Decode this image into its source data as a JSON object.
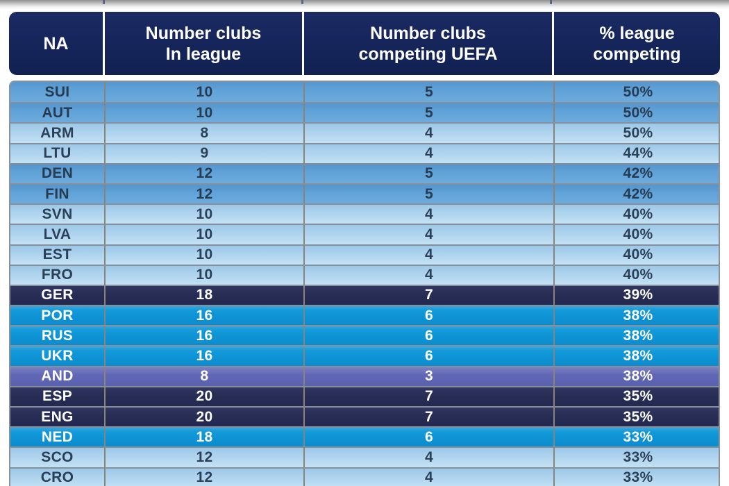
{
  "colors": {
    "header_bg": "#15255a",
    "grid_line": "#87909a",
    "row_medium_blue": "#61a2d7",
    "row_light_blue": "#aed3ee",
    "row_navy": "#272d55",
    "row_azure": "#0e92d4",
    "row_purple": "#6167b4",
    "dark_text": "#263a50",
    "white_text": "#ffffff"
  },
  "table": {
    "headers": {
      "na": "NA",
      "clubs": "Number clubs\nIn league",
      "uefa": "Number clubs\ncompeting UEFA",
      "pct": "% league\ncompeting"
    },
    "rows": [
      {
        "code": "SUI",
        "clubs": "10",
        "uefa": "5",
        "pct": "50%",
        "style": "medium"
      },
      {
        "code": "AUT",
        "clubs": "10",
        "uefa": "5",
        "pct": "50%",
        "style": "medium"
      },
      {
        "code": "ARM",
        "clubs": "8",
        "uefa": "4",
        "pct": "50%",
        "style": "light"
      },
      {
        "code": "LTU",
        "clubs": "9",
        "uefa": "4",
        "pct": "44%",
        "style": "light"
      },
      {
        "code": "DEN",
        "clubs": "12",
        "uefa": "5",
        "pct": "42%",
        "style": "medium"
      },
      {
        "code": "FIN",
        "clubs": "12",
        "uefa": "5",
        "pct": "42%",
        "style": "medium"
      },
      {
        "code": "SVN",
        "clubs": "10",
        "uefa": "4",
        "pct": "40%",
        "style": "light"
      },
      {
        "code": "LVA",
        "clubs": "10",
        "uefa": "4",
        "pct": "40%",
        "style": "light"
      },
      {
        "code": "EST",
        "clubs": "10",
        "uefa": "4",
        "pct": "40%",
        "style": "light"
      },
      {
        "code": "FRO",
        "clubs": "10",
        "uefa": "4",
        "pct": "40%",
        "style": "light"
      },
      {
        "code": "GER",
        "clubs": "18",
        "uefa": "7",
        "pct": "39%",
        "style": "navy"
      },
      {
        "code": "POR",
        "clubs": "16",
        "uefa": "6",
        "pct": "38%",
        "style": "azure"
      },
      {
        "code": "RUS",
        "clubs": "16",
        "uefa": "6",
        "pct": "38%",
        "style": "azure"
      },
      {
        "code": "UKR",
        "clubs": "16",
        "uefa": "6",
        "pct": "38%",
        "style": "azure"
      },
      {
        "code": "AND",
        "clubs": "8",
        "uefa": "3",
        "pct": "38%",
        "style": "purple"
      },
      {
        "code": "ESP",
        "clubs": "20",
        "uefa": "7",
        "pct": "35%",
        "style": "navy"
      },
      {
        "code": "ENG",
        "clubs": "20",
        "uefa": "7",
        "pct": "35%",
        "style": "navy"
      },
      {
        "code": "NED",
        "clubs": "18",
        "uefa": "6",
        "pct": "33%",
        "style": "azure"
      },
      {
        "code": "SCO",
        "clubs": "12",
        "uefa": "4",
        "pct": "33%",
        "style": "light"
      },
      {
        "code": "CRO",
        "clubs": "12",
        "uefa": "4",
        "pct": "33%",
        "style": "light"
      }
    ]
  },
  "chart_data": {
    "type": "table",
    "title": "",
    "columns": [
      "NA",
      "Number clubs In league",
      "Number clubs competing UEFA",
      "% league competing"
    ],
    "rows": [
      [
        "SUI",
        10,
        5,
        "50%"
      ],
      [
        "AUT",
        10,
        5,
        "50%"
      ],
      [
        "ARM",
        8,
        4,
        "50%"
      ],
      [
        "LTU",
        9,
        4,
        "44%"
      ],
      [
        "DEN",
        12,
        5,
        "42%"
      ],
      [
        "FIN",
        12,
        5,
        "42%"
      ],
      [
        "SVN",
        10,
        4,
        "40%"
      ],
      [
        "LVA",
        10,
        4,
        "40%"
      ],
      [
        "EST",
        10,
        4,
        "40%"
      ],
      [
        "FRO",
        10,
        4,
        "40%"
      ],
      [
        "GER",
        18,
        7,
        "39%"
      ],
      [
        "POR",
        16,
        6,
        "38%"
      ],
      [
        "RUS",
        16,
        6,
        "38%"
      ],
      [
        "UKR",
        16,
        6,
        "38%"
      ],
      [
        "AND",
        8,
        3,
        "38%"
      ],
      [
        "ESP",
        20,
        7,
        "35%"
      ],
      [
        "ENG",
        20,
        7,
        "35%"
      ],
      [
        "NED",
        18,
        6,
        "33%"
      ],
      [
        "SCO",
        12,
        4,
        "33%"
      ],
      [
        "CRO",
        12,
        4,
        "33%"
      ]
    ],
    "row_highlight_styles": {
      "medium_blue": [
        "SUI",
        "AUT",
        "DEN",
        "FIN"
      ],
      "light_blue": [
        "ARM",
        "LTU",
        "SVN",
        "LVA",
        "EST",
        "FRO",
        "SCO",
        "CRO"
      ],
      "dark_navy": [
        "GER",
        "ESP",
        "ENG"
      ],
      "azure": [
        "POR",
        "RUS",
        "UKR",
        "NED"
      ],
      "purple": [
        "AND"
      ]
    }
  }
}
